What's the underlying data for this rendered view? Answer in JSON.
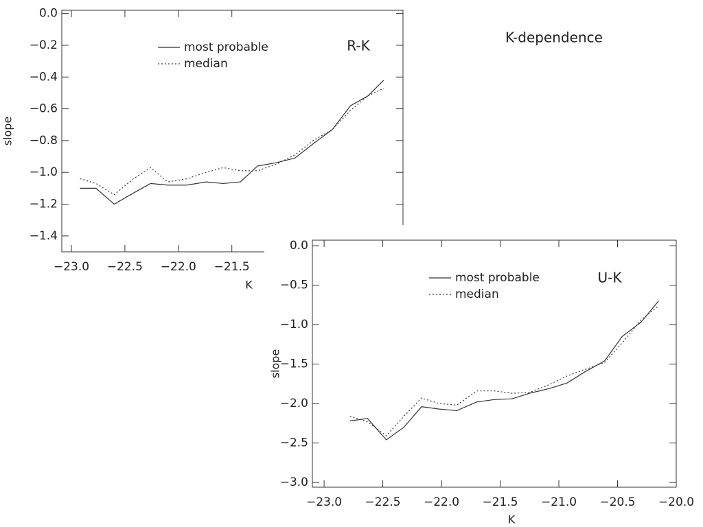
{
  "title": "K-dependence",
  "chart_data": [
    {
      "type": "line",
      "annotation": "R-K",
      "xlabel": "K",
      "ylabel": "slope",
      "xlim": [
        -23.09,
        -19.9
      ],
      "ylim": [
        -1.5,
        0.02
      ],
      "xticks": [
        {
          "value": -23.0,
          "label": "−23.0"
        },
        {
          "value": -22.5,
          "label": "−22.5"
        },
        {
          "value": -22.0,
          "label": "−22.0"
        },
        {
          "value": -21.5,
          "label": "−21.5"
        }
      ],
      "yticks": [
        {
          "value": 0.0,
          "label": "0.0"
        },
        {
          "value": -0.2,
          "label": "−0.2"
        },
        {
          "value": -0.4,
          "label": "−0.4"
        },
        {
          "value": -0.6,
          "label": "−0.6"
        },
        {
          "value": -0.8,
          "label": "−0.8"
        },
        {
          "value": -1.0,
          "label": "−1.0"
        },
        {
          "value": -1.2,
          "label": "−1.2"
        },
        {
          "value": -1.4,
          "label": "−1.4"
        }
      ],
      "x": [
        -22.92,
        -22.77,
        -22.6,
        -22.42,
        -22.26,
        -22.1,
        -21.92,
        -21.74,
        -21.58,
        -21.42,
        -21.26,
        -21.09,
        -20.91,
        -20.74,
        -20.56,
        -20.39,
        -20.23,
        -20.08
      ],
      "series": [
        {
          "name": "most probable",
          "color": "#333333",
          "linestyle": "solid",
          "values": [
            -1.1,
            -1.1,
            -1.2,
            -1.13,
            -1.07,
            -1.08,
            -1.08,
            -1.06,
            -1.07,
            -1.06,
            -0.96,
            -0.94,
            -0.91,
            -0.82,
            -0.73,
            -0.58,
            -0.52,
            -0.42
          ]
        },
        {
          "name": "median",
          "color": "#333333",
          "linestyle": "dotted",
          "values": [
            -1.04,
            -1.07,
            -1.14,
            -1.04,
            -0.97,
            -1.06,
            -1.04,
            -1.0,
            -0.97,
            -0.99,
            -0.99,
            -0.95,
            -0.89,
            -0.8,
            -0.73,
            -0.61,
            -0.52,
            -0.47
          ]
        }
      ]
    },
    {
      "type": "line",
      "annotation": "U-K",
      "xlabel": "K",
      "ylabel": "slope",
      "xlim": [
        -23.1,
        -20.0
      ],
      "ylim": [
        -3.06,
        0.07
      ],
      "xticks": [
        {
          "value": -23.0,
          "label": "−23.0"
        },
        {
          "value": -22.5,
          "label": "−22.5"
        },
        {
          "value": -22.0,
          "label": "−22.0"
        },
        {
          "value": -21.5,
          "label": "−21.5"
        },
        {
          "value": -21.0,
          "label": "−21.0"
        },
        {
          "value": -20.5,
          "label": "−20.5"
        },
        {
          "value": -20.0,
          "label": "−20.0"
        }
      ],
      "yticks": [
        {
          "value": 0.0,
          "label": "0.0"
        },
        {
          "value": -0.5,
          "label": "−0.5"
        },
        {
          "value": -1.0,
          "label": "−1.0"
        },
        {
          "value": -1.5,
          "label": "−1.5"
        },
        {
          "value": -2.0,
          "label": "−2.0"
        },
        {
          "value": -2.5,
          "label": "−2.5"
        },
        {
          "value": -3.0,
          "label": "−3.0"
        }
      ],
      "x": [
        -22.78,
        -22.63,
        -22.47,
        -22.32,
        -22.17,
        -22.02,
        -21.87,
        -21.7,
        -21.55,
        -21.4,
        -21.25,
        -21.08,
        -20.93,
        -20.78,
        -20.61,
        -20.46,
        -20.3,
        -20.15
      ],
      "series": [
        {
          "name": "most probable",
          "color": "#333333",
          "linestyle": "solid",
          "values": [
            -2.22,
            -2.19,
            -2.46,
            -2.3,
            -2.04,
            -2.07,
            -2.09,
            -1.98,
            -1.95,
            -1.94,
            -1.87,
            -1.81,
            -1.74,
            -1.6,
            -1.46,
            -1.15,
            -0.97,
            -0.7
          ]
        },
        {
          "name": "median",
          "color": "#333333",
          "linestyle": "dotted",
          "values": [
            -2.16,
            -2.23,
            -2.41,
            -2.16,
            -1.93,
            -2.0,
            -2.02,
            -1.84,
            -1.84,
            -1.87,
            -1.86,
            -1.76,
            -1.65,
            -1.57,
            -1.48,
            -1.23,
            -0.94,
            -0.76
          ]
        }
      ]
    }
  ]
}
